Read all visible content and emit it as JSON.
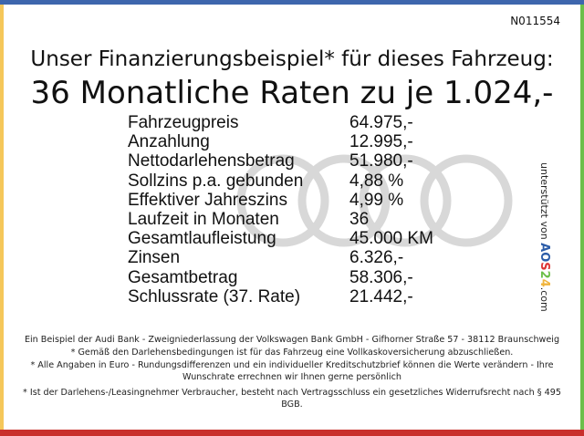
{
  "reference_code": "N011554",
  "title_line1": "Unser Finanzierungsbeispiel* für dieses Fahrzeug:",
  "title_line2": "36 Monatliche Raten zu je 1.024,-",
  "watermark_logo": "Audi",
  "rows": [
    {
      "label": "Fahrzeugpreis",
      "value": "64.975,-"
    },
    {
      "label": "Anzahlung",
      "value": "12.995,-"
    },
    {
      "label": "Nettodarlehensbetrag",
      "value": "51.980,-"
    },
    {
      "label": "Sollzins p.a. gebunden",
      "value": "4,88 %"
    },
    {
      "label": "Effektiver Jahreszins",
      "value": "4,99 %"
    },
    {
      "label": "Laufzeit in Monaten",
      "value": "36"
    },
    {
      "label": "Gesamtlaufleistung",
      "value": "45.000 KM"
    },
    {
      "label": "Zinsen",
      "value": "6.326,-"
    },
    {
      "label": "Gesamtbetrag",
      "value": "58.306,-"
    },
    {
      "label": "Schlussrate (37. Rate)",
      "value": "21.442,-"
    }
  ],
  "side": {
    "text": "unterstützt von",
    "brand": "AOS24",
    "suffix": ".com"
  },
  "footer": [
    "Ein Beispiel der Audi Bank - Zweigniederlassung der Volkswagen Bank GmbH - Gifhorner Straße 57 - 38112 Braunschweig",
    "* Gemäß den Darlehensbedingungen ist für das Fahrzeug eine Vollkaskoversicherung abzuschließen.",
    "* Alle Angaben in Euro - Rundungsdifferenzen und ein individueller Kreditschutzbrief können die Werte verändern - Ihre Wunschrate errechnen wir Ihnen gerne persönlich",
    "* Ist der Darlehens-/Leasingnehmer Verbraucher, besteht nach Vertragsschluss ein gesetzliches Widerrufsrecht nach § 495 BGB."
  ],
  "colors": {
    "top": "#3e66ad",
    "left": "#f5c75a",
    "right": "#6cbf4a",
    "bottom": "#c9302c"
  }
}
